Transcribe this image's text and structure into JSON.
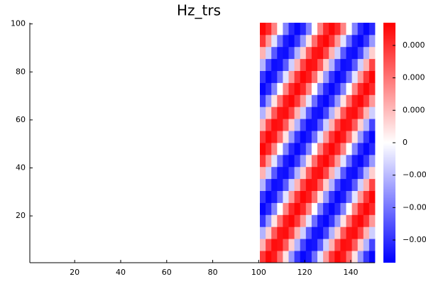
{
  "chart_data": {
    "type": "heatmap",
    "title": "Hz_trs",
    "x_edges": [
      0.5,
      100.5,
      103,
      105.5,
      108,
      110.5,
      113,
      115.5,
      118,
      120.5,
      123,
      125.5,
      128,
      130.5,
      133,
      135.5,
      138,
      140.5,
      143,
      145.5,
      148,
      150.5
    ],
    "y_edges": [
      0.5,
      5.5,
      10.5,
      15.5,
      20.5,
      25.5,
      30.5,
      35.5,
      40.5,
      45.5,
      50.5,
      55.5,
      60.5,
      65.5,
      70.5,
      75.5,
      80.5,
      85.5,
      90.5,
      95.5,
      100.5
    ],
    "z": [
      [
        0,
        0.00029,
        0.00036,
        0.00033,
        0.00021,
        4e-05,
        -0.00015,
        -0.00029,
        -0.00036,
        -0.00033,
        -0.00021,
        -4e-05,
        0.00015,
        0.00029,
        0.00036,
        0.00033,
        0.00021,
        4e-05,
        -0.00015,
        -0.00029,
        -0.00036
      ],
      [
        0,
        0.00011,
        0.00027,
        0.00035,
        0.00034,
        0.00024,
        7e-05,
        -0.00011,
        -0.00027,
        -0.00035,
        -0.00034,
        -0.00024,
        -7e-05,
        0.00011,
        0.00027,
        0.00035,
        0.00034,
        0.00024,
        7e-05,
        -0.00011,
        -0.00027
      ],
      [
        0,
        -0.00011,
        7e-05,
        0.00024,
        0.00034,
        0.00035,
        0.00027,
        0.00011,
        -7e-05,
        -0.00024,
        -0.00034,
        -0.00035,
        -0.00027,
        -0.00011,
        7e-05,
        0.00024,
        0.00034,
        0.00035,
        0.00027,
        0.00011,
        -7e-05
      ],
      [
        0,
        -0.00029,
        -0.00015,
        4e-05,
        0.00021,
        0.00033,
        0.00036,
        0.00029,
        0.00015,
        -4e-05,
        -0.00021,
        -0.00033,
        -0.00036,
        -0.00029,
        -0.00015,
        4e-05,
        0.00021,
        0.00033,
        0.00036,
        0.00029,
        0.00015
      ],
      [
        0,
        -0.00036,
        -0.00031,
        -0.00018,
        0,
        0.00018,
        0.00031,
        0.00036,
        0.00031,
        0.00018,
        0,
        -0.00018,
        -0.00031,
        -0.00036,
        -0.00031,
        -0.00018,
        0,
        0.00018,
        0.00031,
        0.00036,
        0.00031
      ],
      [
        0,
        -0.00029,
        -0.00036,
        -0.00033,
        -0.00021,
        -4e-05,
        0.00015,
        0.00029,
        0.00036,
        0.00033,
        0.00021,
        4e-05,
        -0.00015,
        -0.00029,
        -0.00036,
        -0.00033,
        -0.00021,
        -4e-05,
        0.00015,
        0.00029,
        0.00036
      ],
      [
        0,
        -0.00011,
        -0.00027,
        -0.00035,
        -0.00034,
        -0.00024,
        -7e-05,
        0.00011,
        0.00027,
        0.00035,
        0.00034,
        0.00024,
        7e-05,
        -0.00011,
        -0.00027,
        -0.00035,
        -0.00034,
        -0.00024,
        -7e-05,
        0.00011,
        0.00027
      ],
      [
        0,
        0.00011,
        -7e-05,
        -0.00024,
        -0.00034,
        -0.00035,
        -0.00027,
        -0.00011,
        7e-05,
        0.00024,
        0.00034,
        0.00035,
        0.00027,
        0.00011,
        -7e-05,
        -0.00024,
        -0.00034,
        -0.00035,
        -0.00027,
        -0.00011,
        7e-05
      ],
      [
        0,
        0.00029,
        0.00015,
        -4e-05,
        -0.00021,
        -0.00033,
        -0.00036,
        -0.00029,
        -0.00015,
        4e-05,
        0.00021,
        0.00033,
        0.00036,
        0.00029,
        0.00015,
        -4e-05,
        -0.00021,
        -0.00033,
        -0.00036,
        -0.00029,
        -0.00015
      ],
      [
        0,
        0.00036,
        0.00031,
        0.00018,
        0,
        -0.00018,
        -0.00031,
        -0.00036,
        -0.00031,
        -0.00018,
        0,
        0.00018,
        0.00031,
        0.00036,
        0.00031,
        0.00018,
        0,
        -0.00018,
        -0.00031,
        -0.00036,
        -0.00031
      ],
      [
        0,
        0.00029,
        0.00036,
        0.00033,
        0.00021,
        4e-05,
        -0.00015,
        -0.00029,
        -0.00036,
        -0.00033,
        -0.00021,
        -4e-05,
        0.00015,
        0.00029,
        0.00036,
        0.00033,
        0.00021,
        4e-05,
        -0.00015,
        -0.00029,
        -0.00036
      ],
      [
        0,
        0.00011,
        0.00027,
        0.00035,
        0.00034,
        0.00024,
        7e-05,
        -0.00011,
        -0.00027,
        -0.00035,
        -0.00034,
        -0.00024,
        -7e-05,
        0.00011,
        0.00027,
        0.00035,
        0.00034,
        0.00024,
        7e-05,
        -0.00011,
        -0.00027
      ],
      [
        0,
        -0.00011,
        7e-05,
        0.00024,
        0.00034,
        0.00035,
        0.00027,
        0.00011,
        -7e-05,
        -0.00024,
        -0.00034,
        -0.00035,
        -0.00027,
        -0.00011,
        7e-05,
        0.00024,
        0.00034,
        0.00035,
        0.00027,
        0.00011,
        -7e-05
      ],
      [
        0,
        -0.00029,
        -0.00015,
        4e-05,
        0.00021,
        0.00033,
        0.00036,
        0.00029,
        0.00015,
        -4e-05,
        -0.00021,
        -0.00033,
        -0.00036,
        -0.00029,
        -0.00015,
        4e-05,
        0.00021,
        0.00033,
        0.00036,
        0.00029,
        0.00015
      ],
      [
        0,
        -0.00036,
        -0.00031,
        -0.00018,
        0,
        0.00018,
        0.00031,
        0.00036,
        0.00031,
        0.00018,
        0,
        -0.00018,
        -0.00031,
        -0.00036,
        -0.00031,
        -0.00018,
        0,
        0.00018,
        0.00031,
        0.00036,
        0.00031
      ],
      [
        0,
        -0.00029,
        -0.00036,
        -0.00033,
        -0.00021,
        -4e-05,
        0.00015,
        0.00029,
        0.00036,
        0.00033,
        0.00021,
        4e-05,
        -0.00015,
        -0.00029,
        -0.00036,
        -0.00033,
        -0.00021,
        -4e-05,
        0.00015,
        0.00029,
        0.00036
      ],
      [
        0,
        -0.00011,
        -0.00027,
        -0.00035,
        -0.00034,
        -0.00024,
        -7e-05,
        0.00011,
        0.00027,
        0.00035,
        0.00034,
        0.00024,
        7e-05,
        -0.00011,
        -0.00027,
        -0.00035,
        -0.00034,
        -0.00024,
        -7e-05,
        0.00011,
        0.00027
      ],
      [
        0,
        0.00011,
        -7e-05,
        -0.00024,
        -0.00034,
        -0.00035,
        -0.00027,
        -0.00011,
        7e-05,
        0.00024,
        0.00034,
        0.00035,
        0.00027,
        0.00011,
        -7e-05,
        -0.00024,
        -0.00034,
        -0.00035,
        -0.00027,
        -0.00011,
        7e-05
      ],
      [
        0,
        0.00029,
        0.00015,
        -4e-05,
        -0.00021,
        -0.00033,
        -0.00036,
        -0.00029,
        -0.00015,
        4e-05,
        0.00021,
        0.00033,
        0.00036,
        0.00029,
        0.00015,
        -4e-05,
        -0.00021,
        -0.00033,
        -0.00036,
        -0.00029,
        -0.00015
      ],
      [
        0,
        0.00036,
        0.00031,
        0.00018,
        0,
        -0.00018,
        -0.00031,
        -0.00036,
        -0.00031,
        -0.00018,
        0,
        0.00018,
        0.00031,
        0.00036,
        0.00031,
        0.00018,
        0,
        -0.00018,
        -0.00031,
        -0.00036,
        -0.00031
      ]
    ],
    "xlim": [
      0.5,
      150.5
    ],
    "ylim": [
      0.5,
      100.5
    ],
    "xticks": [
      20,
      40,
      60,
      80,
      100,
      120,
      140
    ],
    "yticks": [
      20,
      40,
      60,
      80,
      100
    ],
    "colormap": [
      "#0000ff",
      "#ffffff",
      "#ff0000"
    ],
    "clim": [
      -0.00037,
      0.00037
    ],
    "cticks": [
      {
        "value": 0.0003,
        "label": "0.000"
      },
      {
        "value": 0.0002,
        "label": "0.000"
      },
      {
        "value": 0.0001,
        "label": "0.000"
      },
      0,
      {
        "value": -0.0001,
        "label": "−0.00"
      },
      {
        "value": -0.0002,
        "label": "−0.00"
      },
      {
        "value": -0.0003,
        "label": "−0.00"
      }
    ]
  }
}
